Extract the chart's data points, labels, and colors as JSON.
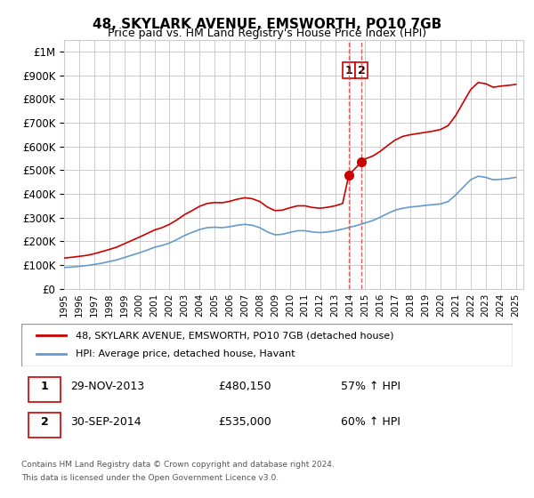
{
  "title": "48, SKYLARK AVENUE, EMSWORTH, PO10 7GB",
  "subtitle": "Price paid vs. HM Land Registry's House Price Index (HPI)",
  "ylabel_ticks": [
    "£0",
    "£100K",
    "£200K",
    "£300K",
    "£400K",
    "£500K",
    "£600K",
    "£700K",
    "£800K",
    "£900K",
    "£1M"
  ],
  "ytick_values": [
    0,
    100000,
    200000,
    300000,
    400000,
    500000,
    600000,
    700000,
    800000,
    900000,
    1000000
  ],
  "ylim": [
    0,
    1050000
  ],
  "xlim_start": 1995.0,
  "xlim_end": 2025.5,
  "sale1_date": 2013.91,
  "sale1_price": 480150,
  "sale1_label": "1",
  "sale1_text": "29-NOV-2013",
  "sale1_price_text": "£480,150",
  "sale1_hpi_text": "57% ↑ HPI",
  "sale2_date": 2014.75,
  "sale2_price": 535000,
  "sale2_label": "2",
  "sale2_text": "30-SEP-2014",
  "sale2_price_text": "£535,000",
  "sale2_hpi_text": "60% ↑ HPI",
  "red_line_color": "#cc0000",
  "blue_line_color": "#6699cc",
  "grid_color": "#cccccc",
  "vline_color": "#dd4444",
  "dot_color": "#cc0000",
  "legend_label_red": "48, SKYLARK AVENUE, EMSWORTH, PO10 7GB (detached house)",
  "legend_label_blue": "HPI: Average price, detached house, Havant",
  "footer1": "Contains HM Land Registry data © Crown copyright and database right 2024.",
  "footer2": "This data is licensed under the Open Government Licence v3.0.",
  "hpi_years": [
    1995,
    1995.5,
    1996,
    1996.5,
    1997,
    1997.5,
    1998,
    1998.5,
    1999,
    1999.5,
    2000,
    2000.5,
    2001,
    2001.5,
    2002,
    2002.5,
    2003,
    2003.5,
    2004,
    2004.5,
    2005,
    2005.5,
    2006,
    2006.5,
    2007,
    2007.5,
    2008,
    2008.5,
    2009,
    2009.5,
    2010,
    2010.5,
    2011,
    2011.5,
    2012,
    2012.5,
    2013,
    2013.5,
    2014,
    2014.5,
    2015,
    2015.5,
    2016,
    2016.5,
    2017,
    2017.5,
    2018,
    2018.5,
    2019,
    2019.5,
    2020,
    2020.5,
    2021,
    2021.5,
    2022,
    2022.5,
    2023,
    2023.5,
    2024,
    2024.5,
    2025
  ],
  "hpi_values": [
    90000,
    92000,
    95000,
    98000,
    103000,
    108000,
    115000,
    122000,
    132000,
    142000,
    152000,
    163000,
    175000,
    183000,
    193000,
    208000,
    225000,
    238000,
    250000,
    258000,
    260000,
    258000,
    262000,
    268000,
    272000,
    268000,
    258000,
    240000,
    228000,
    230000,
    238000,
    245000,
    245000,
    240000,
    237000,
    240000,
    245000,
    252000,
    260000,
    268000,
    278000,
    288000,
    302000,
    318000,
    332000,
    340000,
    345000,
    348000,
    352000,
    355000,
    358000,
    368000,
    395000,
    428000,
    460000,
    475000,
    470000,
    460000,
    462000,
    465000,
    470000
  ],
  "red_years": [
    1995,
    1995.5,
    1996,
    1996.5,
    1997,
    1997.5,
    1998,
    1998.5,
    1999,
    1999.5,
    2000,
    2000.5,
    2001,
    2001.5,
    2002,
    2002.5,
    2003,
    2003.5,
    2004,
    2004.5,
    2005,
    2005.5,
    2006,
    2006.5,
    2007,
    2007.5,
    2008,
    2008.5,
    2009,
    2009.5,
    2010,
    2010.5,
    2011,
    2011.5,
    2012,
    2012.5,
    2013,
    2013.5,
    2013.91,
    2014.75,
    2015,
    2015.5,
    2016,
    2016.5,
    2017,
    2017.5,
    2018,
    2018.5,
    2019,
    2019.5,
    2020,
    2020.5,
    2021,
    2021.5,
    2022,
    2022.5,
    2023,
    2023.5,
    2024,
    2024.5,
    2025
  ],
  "red_values": [
    130000,
    133000,
    137000,
    141000,
    148000,
    157000,
    166000,
    176000,
    190000,
    204000,
    218000,
    233000,
    248000,
    258000,
    272000,
    291000,
    313000,
    330000,
    348000,
    360000,
    364000,
    363000,
    369000,
    378000,
    384000,
    380000,
    368000,
    345000,
    330000,
    332000,
    342000,
    350000,
    350000,
    343000,
    340000,
    344000,
    350000,
    360000,
    480150,
    535000,
    548000,
    560000,
    580000,
    605000,
    628000,
    643000,
    650000,
    655000,
    660000,
    665000,
    672000,
    688000,
    730000,
    785000,
    840000,
    870000,
    865000,
    850000,
    855000,
    858000,
    862000
  ]
}
